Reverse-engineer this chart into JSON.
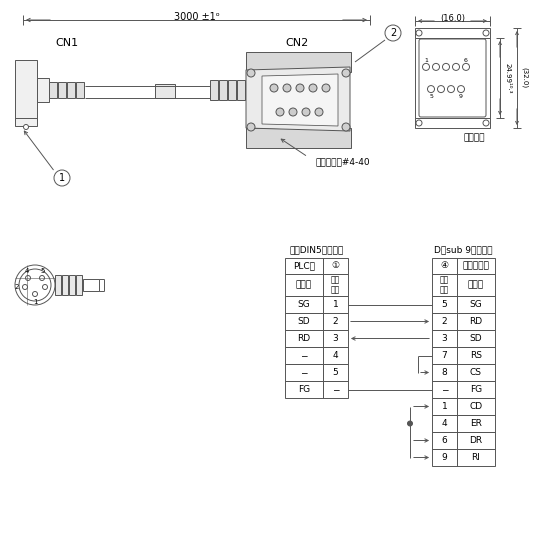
{
  "bg_color": "#ffffff",
  "line_color": "#555555",
  "dim_3000": "3000 ±1ᵒ",
  "dim_16": "(16.0)",
  "dim_2499": "24.99¹⁰·³",
  "dim_32": "(32.0)",
  "label_CN1": "CN1",
  "label_CN2": "CN2",
  "label_socket": "ソケット",
  "label_inch_screw": "インチネジ#4-40",
  "mini_din_title": "ミニDIN5ピンオス",
  "dsub_title": "D－sub 9ピンメス",
  "plc_side": "PLC側",
  "pc_side": "パソコン側",
  "signal_name": "信号名",
  "pin_no": "ピン\n番号",
  "left_rows": [
    [
      "SG",
      "1"
    ],
    [
      "SD",
      "2"
    ],
    [
      "RD",
      "3"
    ],
    [
      "−",
      "4"
    ],
    [
      "−",
      "5"
    ],
    [
      "FG",
      "−"
    ]
  ],
  "right_rows": [
    [
      "5",
      "SG"
    ],
    [
      "2",
      "RD"
    ],
    [
      "3",
      "SD"
    ],
    [
      "7",
      "RS"
    ],
    [
      "8",
      "CS"
    ],
    [
      "−",
      "FG"
    ],
    [
      "1",
      "CD"
    ],
    [
      "4",
      "ER"
    ],
    [
      "6",
      "DR"
    ],
    [
      "9",
      "RI"
    ]
  ]
}
